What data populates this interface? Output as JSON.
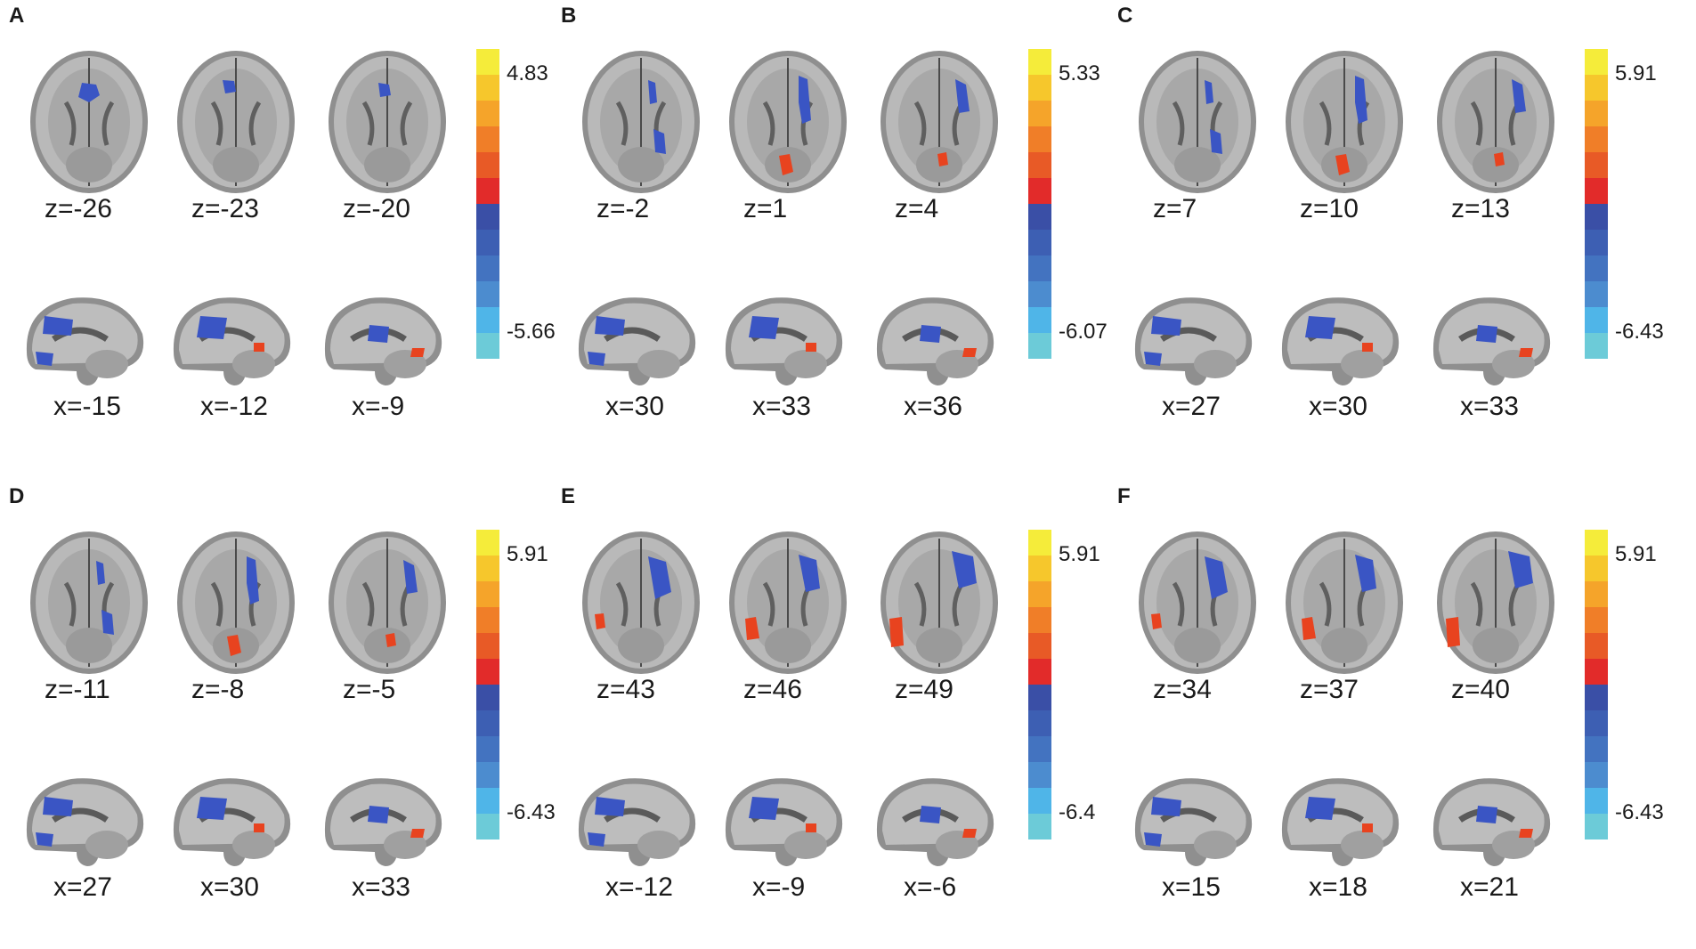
{
  "colorbar_colors": [
    "#f5ec3a",
    "#f6c72c",
    "#f5a42a",
    "#f07e28",
    "#e85a26",
    "#e22b2a",
    "#3a4fa6",
    "#3d5fb3",
    "#4373c0",
    "#4c8ccf",
    "#4fb5e8",
    "#6ccbd8"
  ],
  "blob_colors": {
    "positive": "#e8431f",
    "positive_core": "#f5a21c",
    "negative": "#3a55c4",
    "negative_light": "#4a9be0"
  },
  "panels": [
    {
      "letter": "A",
      "kind": "axial_ventral",
      "axial_labels": [
        "z=-26",
        "z=-23",
        "z=-20"
      ],
      "sagittal_labels": [
        "x=-15",
        "x=-12",
        "x=-9"
      ],
      "cb_max": "4.83",
      "cb_min": "-5.66"
    },
    {
      "letter": "B",
      "kind": "axial_mid",
      "axial_labels": [
        "z=-2",
        "z=1",
        "z=4"
      ],
      "sagittal_labels": [
        "x=30",
        "x=33",
        "x=36"
      ],
      "cb_max": "5.33",
      "cb_min": "-6.07"
    },
    {
      "letter": "C",
      "kind": "axial_mid",
      "axial_labels": [
        "z=7",
        "z=10",
        "z=13"
      ],
      "sagittal_labels": [
        "x=27",
        "x=30",
        "x=33"
      ],
      "cb_max": "5.91",
      "cb_min": "-6.43"
    },
    {
      "letter": "D",
      "kind": "axial_mid",
      "axial_labels": [
        "z=-11",
        "z=-8",
        "z=-5"
      ],
      "sagittal_labels": [
        "x=27",
        "x=30",
        "x=33"
      ],
      "cb_max": "5.91",
      "cb_min": "-6.43"
    },
    {
      "letter": "E",
      "kind": "axial_upper",
      "axial_labels": [
        "z=43",
        "z=46",
        "z=49"
      ],
      "sagittal_labels": [
        "x=-12",
        "x=-9",
        "x=-6"
      ],
      "cb_max": "5.91",
      "cb_min": "-6.4"
    },
    {
      "letter": "F",
      "kind": "axial_upper",
      "axial_labels": [
        "z=34",
        "z=37",
        "z=40"
      ],
      "sagittal_labels": [
        "x=15",
        "x=18",
        "x=21"
      ],
      "cb_max": "5.91",
      "cb_min": "-6.43"
    }
  ]
}
